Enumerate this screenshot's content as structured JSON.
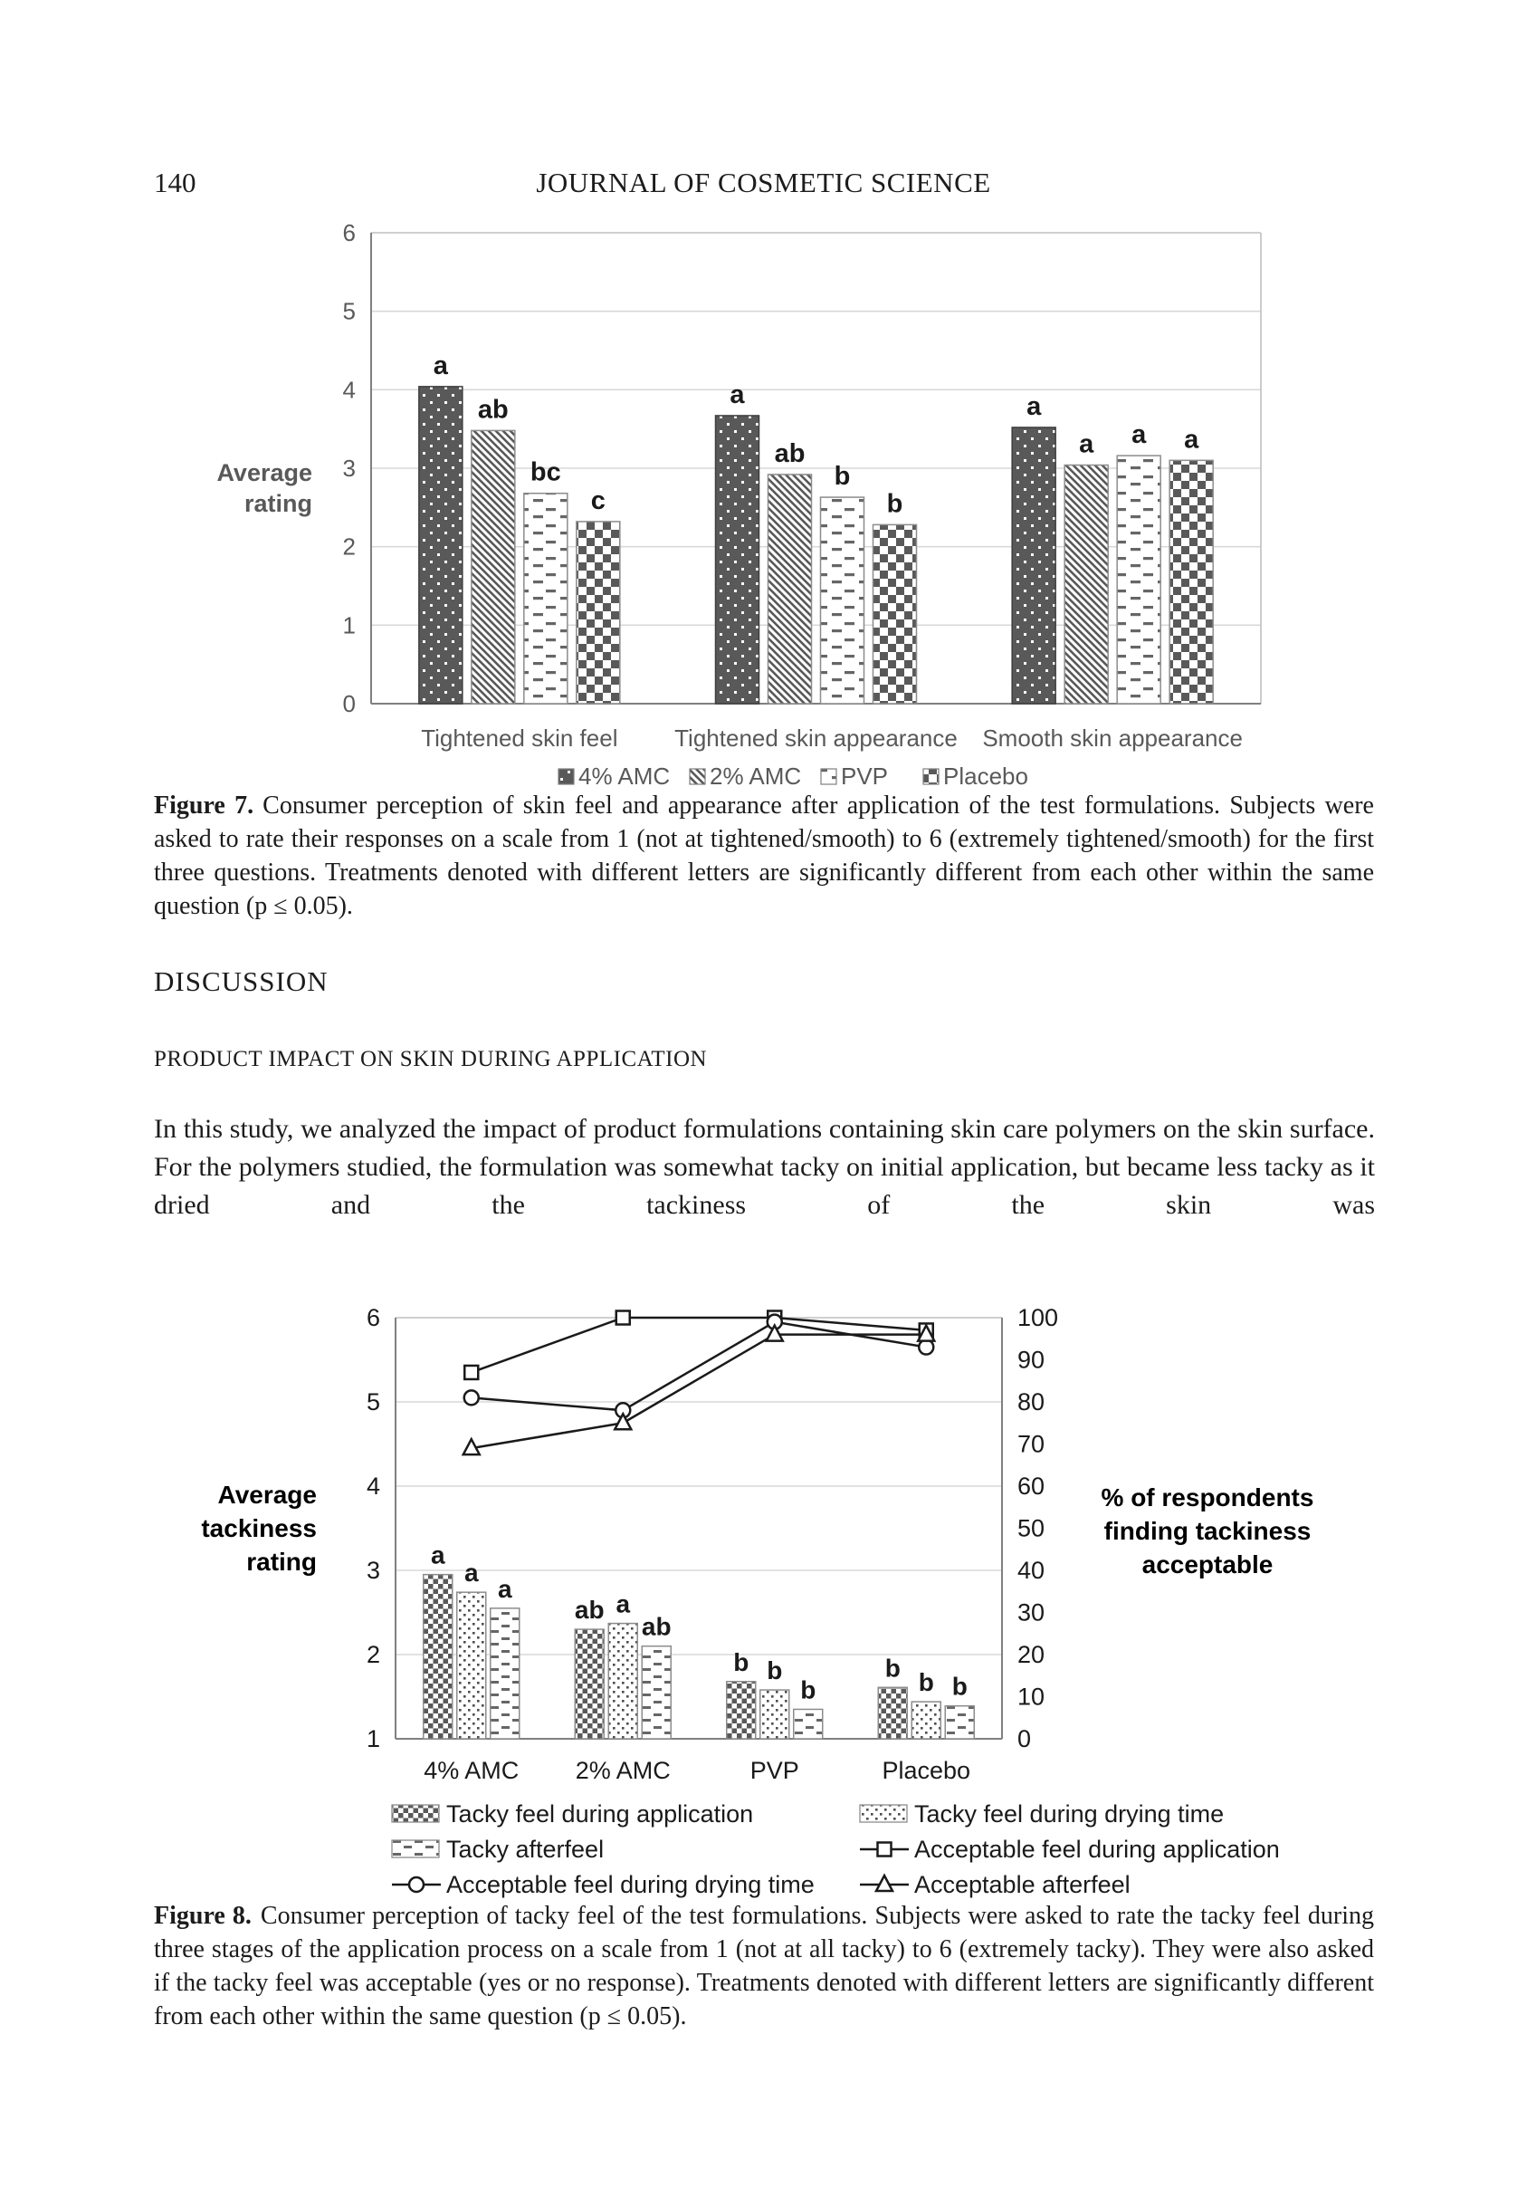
{
  "page": {
    "number": "140",
    "journal_header": "JOURNAL OF COSMETIC SCIENCE"
  },
  "figure7": {
    "caption_label": "Figure 7.",
    "caption_text": "Consumer perception of skin feel and appearance after application of the test formulations. Subjects were asked to rate their responses on a scale from 1 (not at tightened/smooth) to 6 (extremely tightened/smooth) for the first three questions. Treatments denoted with different letters are significantly different from each other within the same question (p ≤ 0.05)."
  },
  "discussion": {
    "heading": "DISCUSSION",
    "subheading": "PRODUCT IMPACT ON SKIN DURING APPLICATION",
    "paragraph": "In this study, we analyzed the impact of product formulations containing skin care polymers on the skin surface. For the polymers studied, the formulation was somewhat tacky on initial application, but became less tacky as it dried and the tackiness of the skin was"
  },
  "figure8": {
    "caption_label": "Figure 8.",
    "caption_text": "Consumer perception of tacky feel of the test formulations. Subjects were asked to rate the tacky feel during three stages of the application process on a scale from 1 (not at all tacky) to 6 (extremely tacky). They were also asked if the tacky feel was acceptable (yes or no response). Treatments denoted with different letters are significantly different from each other within the same question (p ≤ 0.05)."
  },
  "colors": {
    "bar_dark": "#595959",
    "grid_light": "#d9d9d9",
    "border_light": "#bfbfbf",
    "axis_gray": "#808080",
    "chart_text_gray": "#595959",
    "chart_text_black": "#1a1a1a"
  },
  "chart_data": [
    {
      "id": "figure7",
      "type": "bar",
      "title": "",
      "ylabel_lines": [
        "Average",
        "rating"
      ],
      "ylim": [
        0,
        6
      ],
      "yticks": [
        0,
        1,
        2,
        3,
        4,
        5,
        6
      ],
      "grid": true,
      "legend_position": "bottom",
      "categories": [
        "Tightened skin feel",
        "Tightened skin appearance",
        "Smooth skin appearance"
      ],
      "series": [
        {
          "name": "4% AMC",
          "pattern": "dots-dark",
          "values": [
            4.04,
            3.67,
            3.52
          ],
          "letters": [
            "a",
            "a",
            "a"
          ]
        },
        {
          "name": "2% AMC",
          "pattern": "diag",
          "values": [
            3.48,
            2.92,
            3.04
          ],
          "letters": [
            "ab",
            "ab",
            "a"
          ]
        },
        {
          "name": "PVP",
          "pattern": "dash",
          "values": [
            2.68,
            2.63,
            3.16
          ],
          "letters": [
            "bc",
            "b",
            "a"
          ]
        },
        {
          "name": "Placebo",
          "pattern": "checker",
          "values": [
            2.32,
            2.28,
            3.1
          ],
          "letters": [
            "c",
            "b",
            "a"
          ]
        }
      ]
    },
    {
      "id": "figure8",
      "type": "bar+line",
      "left_ylabel_lines": [
        "Average",
        "tackiness",
        "rating"
      ],
      "right_ylabel_lines": [
        "% of respondents",
        "finding tackiness",
        "acceptable"
      ],
      "left_ylim": [
        1,
        6
      ],
      "right_ylim": [
        0,
        100
      ],
      "left_yticks": [
        1,
        2,
        3,
        4,
        5,
        6
      ],
      "right_yticks": [
        0,
        10,
        20,
        30,
        40,
        50,
        60,
        70,
        80,
        90,
        100
      ],
      "grid": true,
      "legend_position": "bottom",
      "categories": [
        "4% AMC",
        "2% AMC",
        "PVP",
        "Placebo"
      ],
      "bar_series": [
        {
          "name": "Tacky feel during application",
          "pattern": "checker-sm",
          "values": [
            2.95,
            2.3,
            1.68,
            1.61
          ],
          "letters": [
            "a",
            "ab",
            "b",
            "b"
          ]
        },
        {
          "name": "Tacky feel during drying time",
          "pattern": "dots-sm",
          "values": [
            2.74,
            2.37,
            1.58,
            1.44
          ],
          "letters": [
            "a",
            "a",
            "b",
            "b"
          ]
        },
        {
          "name": "Tacky afterfeel",
          "pattern": "dash-sm",
          "values": [
            2.55,
            2.1,
            1.35,
            1.39
          ],
          "letters": [
            "a",
            "ab",
            "b",
            "b"
          ]
        }
      ],
      "line_series": [
        {
          "name": "Acceptable feel during application",
          "marker": "square",
          "values": [
            87,
            100,
            100,
            97
          ]
        },
        {
          "name": "Acceptable feel during drying time",
          "marker": "circle",
          "values": [
            81,
            78,
            99,
            93
          ]
        },
        {
          "name": "Acceptable afterfeel",
          "marker": "triangle",
          "values": [
            69,
            75,
            96,
            96
          ]
        }
      ]
    }
  ]
}
